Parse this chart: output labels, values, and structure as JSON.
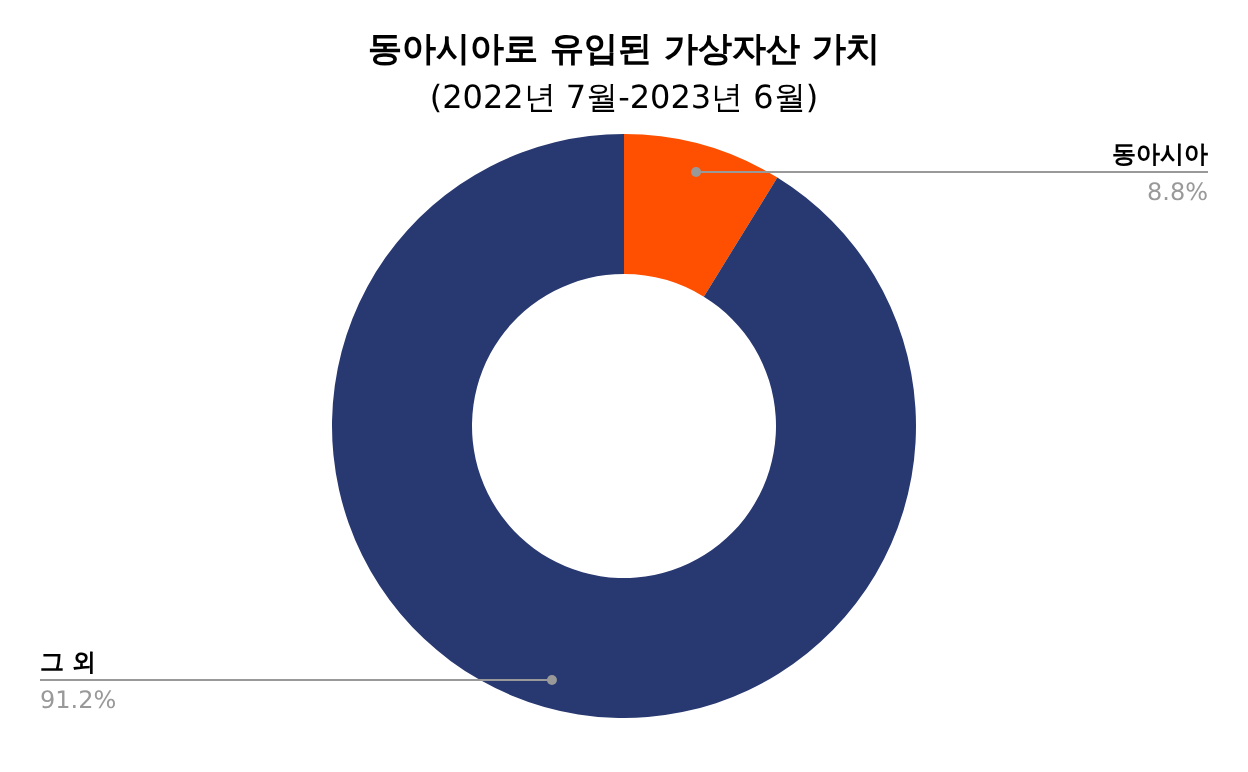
{
  "chart_data": {
    "type": "donut",
    "title": "동아시아로 유입된 가상자산 가치",
    "subtitle": "(2022년 7월-2023년 6월)",
    "categories": [
      "동아시아",
      "그 외"
    ],
    "values": [
      8.8,
      91.2
    ],
    "colors": [
      "#fe5000",
      "#283870"
    ],
    "value_labels": [
      "8.8%",
      "91.2%"
    ],
    "legend": false
  }
}
